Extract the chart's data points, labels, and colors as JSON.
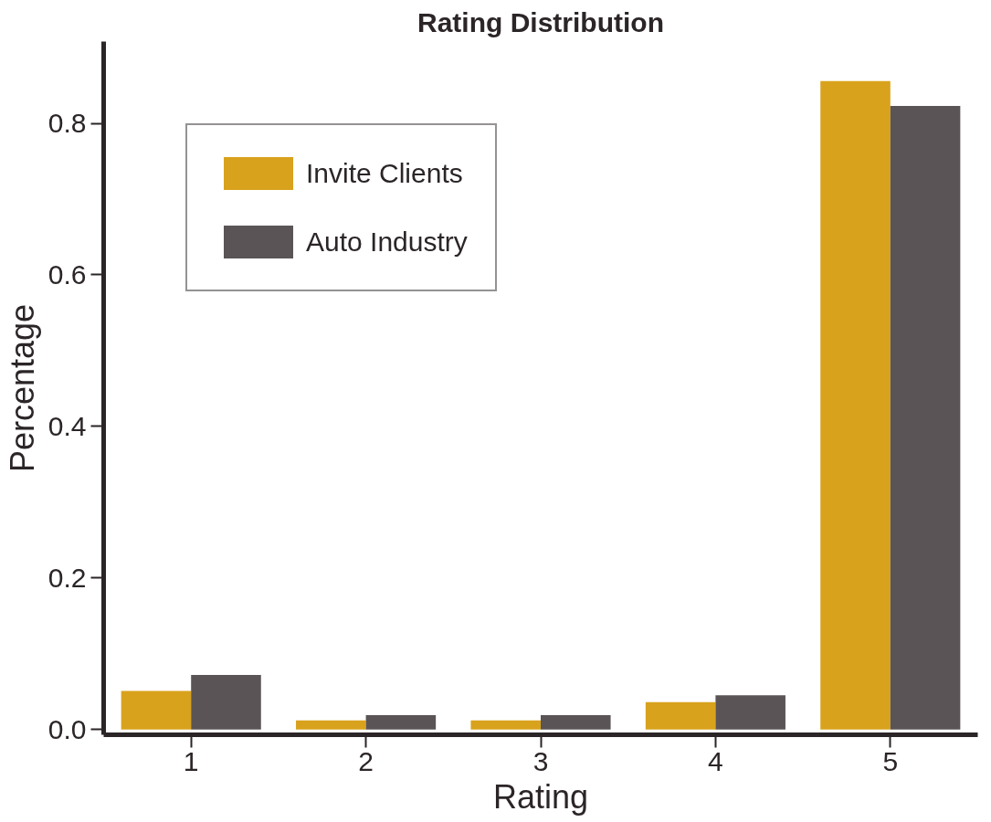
{
  "chart_data": {
    "type": "bar",
    "title": "Rating Distribution",
    "xlabel": "Rating",
    "ylabel": "Percentage",
    "categories": [
      "1",
      "2",
      "3",
      "4",
      "5"
    ],
    "series": [
      {
        "name": "Invite Clients",
        "color": "#d9a21d",
        "values": [
          0.051,
          0.012,
          0.012,
          0.036,
          0.856
        ]
      },
      {
        "name": "Auto Industry",
        "color": "#5a5456",
        "values": [
          0.072,
          0.019,
          0.019,
          0.045,
          0.823
        ]
      }
    ],
    "ylim": [
      -0.007,
      0.908
    ],
    "yticks": [
      {
        "value": 0,
        "label": "0.0"
      },
      0.2,
      0.4,
      0.6,
      0.8
    ],
    "grid": false,
    "legend": "top left"
  }
}
